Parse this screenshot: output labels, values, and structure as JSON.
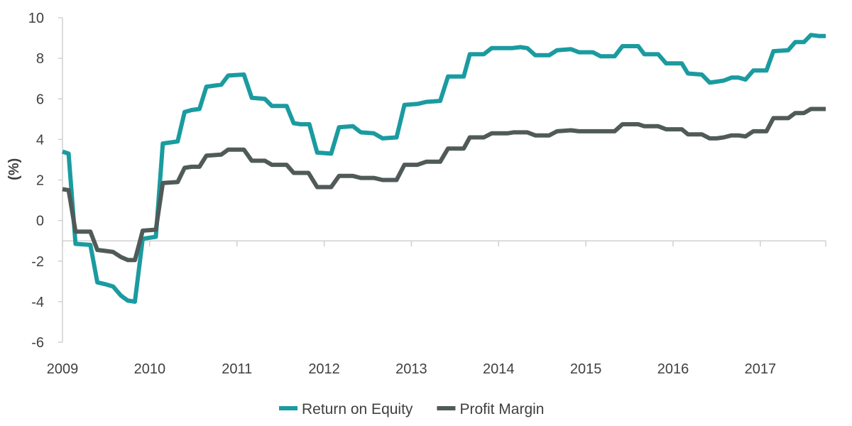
{
  "colors": {
    "axis": "#d0d0d0",
    "tick_label": "#404040"
  },
  "chart_data": {
    "type": "line",
    "title": "",
    "xlabel": "",
    "ylabel": "(%)",
    "xlim": [
      2009,
      2017.75
    ],
    "ylim": [
      -6,
      10
    ],
    "y_ticks": [
      "10",
      "8",
      "6",
      "4",
      "2",
      "0",
      "-2",
      "-4",
      "-6"
    ],
    "y_tick_values": [
      10,
      8,
      6,
      4,
      2,
      0,
      -2,
      -4,
      -6
    ],
    "x_ticks": [
      "2009",
      "2010",
      "2011",
      "2012",
      "2013",
      "2014",
      "2015",
      "2016",
      "2017"
    ],
    "x_tick_values": [
      2009,
      2010,
      2011,
      2012,
      2013,
      2014,
      2015,
      2016,
      2017
    ],
    "x_axis_crosses_y": -1,
    "grid": false,
    "legend": "bottom-center",
    "series": [
      {
        "name": "Return on Equity",
        "color": "#1a9ba0",
        "points": [
          [
            2009.0,
            3.4
          ],
          [
            2009.07,
            3.3
          ],
          [
            2009.15,
            -1.15
          ],
          [
            2009.32,
            -1.2
          ],
          [
            2009.4,
            -3.05
          ],
          [
            2009.5,
            -3.15
          ],
          [
            2009.58,
            -3.25
          ],
          [
            2009.67,
            -3.7
          ],
          [
            2009.75,
            -3.95
          ],
          [
            2009.83,
            -4.0
          ],
          [
            2009.92,
            -0.9
          ],
          [
            2010.07,
            -0.8
          ],
          [
            2010.15,
            3.8
          ],
          [
            2010.32,
            3.9
          ],
          [
            2010.4,
            5.35
          ],
          [
            2010.48,
            5.45
          ],
          [
            2010.57,
            5.5
          ],
          [
            2010.65,
            6.6
          ],
          [
            2010.82,
            6.7
          ],
          [
            2010.9,
            7.15
          ],
          [
            2011.08,
            7.2
          ],
          [
            2011.17,
            6.05
          ],
          [
            2011.32,
            6.0
          ],
          [
            2011.4,
            5.65
          ],
          [
            2011.57,
            5.65
          ],
          [
            2011.65,
            4.8
          ],
          [
            2011.73,
            4.75
          ],
          [
            2011.83,
            4.75
          ],
          [
            2011.92,
            3.35
          ],
          [
            2012.08,
            3.3
          ],
          [
            2012.17,
            4.6
          ],
          [
            2012.33,
            4.65
          ],
          [
            2012.42,
            4.35
          ],
          [
            2012.57,
            4.3
          ],
          [
            2012.67,
            4.05
          ],
          [
            2012.83,
            4.1
          ],
          [
            2012.92,
            5.7
          ],
          [
            2013.07,
            5.75
          ],
          [
            2013.17,
            5.85
          ],
          [
            2013.33,
            5.9
          ],
          [
            2013.42,
            7.1
          ],
          [
            2013.6,
            7.1
          ],
          [
            2013.67,
            8.2
          ],
          [
            2013.83,
            8.2
          ],
          [
            2013.92,
            8.5
          ],
          [
            2014.15,
            8.5
          ],
          [
            2014.25,
            8.55
          ],
          [
            2014.33,
            8.5
          ],
          [
            2014.42,
            8.15
          ],
          [
            2014.58,
            8.15
          ],
          [
            2014.67,
            8.4
          ],
          [
            2014.83,
            8.45
          ],
          [
            2014.92,
            8.3
          ],
          [
            2015.08,
            8.3
          ],
          [
            2015.17,
            8.1
          ],
          [
            2015.33,
            8.1
          ],
          [
            2015.42,
            8.6
          ],
          [
            2015.6,
            8.6
          ],
          [
            2015.67,
            8.2
          ],
          [
            2015.83,
            8.2
          ],
          [
            2015.92,
            7.75
          ],
          [
            2016.1,
            7.75
          ],
          [
            2016.17,
            7.25
          ],
          [
            2016.33,
            7.2
          ],
          [
            2016.42,
            6.8
          ],
          [
            2016.5,
            6.85
          ],
          [
            2016.58,
            6.9
          ],
          [
            2016.67,
            7.05
          ],
          [
            2016.75,
            7.05
          ],
          [
            2016.83,
            6.95
          ],
          [
            2016.92,
            7.4
          ],
          [
            2017.07,
            7.4
          ],
          [
            2017.15,
            8.35
          ],
          [
            2017.32,
            8.4
          ],
          [
            2017.4,
            8.8
          ],
          [
            2017.5,
            8.8
          ],
          [
            2017.58,
            9.15
          ],
          [
            2017.67,
            9.1
          ],
          [
            2017.75,
            9.1
          ]
        ]
      },
      {
        "name": "Profit Margin",
        "color": "#505a59",
        "points": [
          [
            2009.0,
            1.55
          ],
          [
            2009.07,
            1.5
          ],
          [
            2009.15,
            -0.55
          ],
          [
            2009.32,
            -0.55
          ],
          [
            2009.4,
            -1.45
          ],
          [
            2009.5,
            -1.5
          ],
          [
            2009.58,
            -1.55
          ],
          [
            2009.67,
            -1.8
          ],
          [
            2009.75,
            -1.95
          ],
          [
            2009.83,
            -1.95
          ],
          [
            2009.92,
            -0.5
          ],
          [
            2010.07,
            -0.45
          ],
          [
            2010.15,
            1.85
          ],
          [
            2010.32,
            1.9
          ],
          [
            2010.4,
            2.6
          ],
          [
            2010.48,
            2.65
          ],
          [
            2010.57,
            2.65
          ],
          [
            2010.65,
            3.2
          ],
          [
            2010.82,
            3.25
          ],
          [
            2010.9,
            3.5
          ],
          [
            2011.08,
            3.5
          ],
          [
            2011.17,
            2.95
          ],
          [
            2011.32,
            2.95
          ],
          [
            2011.4,
            2.75
          ],
          [
            2011.57,
            2.75
          ],
          [
            2011.65,
            2.35
          ],
          [
            2011.82,
            2.35
          ],
          [
            2011.92,
            1.65
          ],
          [
            2012.08,
            1.65
          ],
          [
            2012.17,
            2.2
          ],
          [
            2012.33,
            2.2
          ],
          [
            2012.42,
            2.1
          ],
          [
            2012.57,
            2.1
          ],
          [
            2012.67,
            2.0
          ],
          [
            2012.83,
            2.0
          ],
          [
            2012.92,
            2.75
          ],
          [
            2013.07,
            2.75
          ],
          [
            2013.17,
            2.9
          ],
          [
            2013.33,
            2.9
          ],
          [
            2013.42,
            3.55
          ],
          [
            2013.6,
            3.55
          ],
          [
            2013.67,
            4.1
          ],
          [
            2013.83,
            4.1
          ],
          [
            2013.92,
            4.3
          ],
          [
            2014.1,
            4.3
          ],
          [
            2014.17,
            4.35
          ],
          [
            2014.33,
            4.35
          ],
          [
            2014.42,
            4.2
          ],
          [
            2014.58,
            4.2
          ],
          [
            2014.67,
            4.4
          ],
          [
            2014.83,
            4.45
          ],
          [
            2014.92,
            4.4
          ],
          [
            2015.33,
            4.4
          ],
          [
            2015.42,
            4.75
          ],
          [
            2015.6,
            4.75
          ],
          [
            2015.67,
            4.65
          ],
          [
            2015.83,
            4.65
          ],
          [
            2015.92,
            4.5
          ],
          [
            2016.1,
            4.5
          ],
          [
            2016.17,
            4.25
          ],
          [
            2016.33,
            4.25
          ],
          [
            2016.42,
            4.05
          ],
          [
            2016.5,
            4.05
          ],
          [
            2016.58,
            4.1
          ],
          [
            2016.67,
            4.2
          ],
          [
            2016.75,
            4.2
          ],
          [
            2016.83,
            4.15
          ],
          [
            2016.92,
            4.4
          ],
          [
            2017.07,
            4.4
          ],
          [
            2017.15,
            5.05
          ],
          [
            2017.32,
            5.05
          ],
          [
            2017.4,
            5.3
          ],
          [
            2017.5,
            5.3
          ],
          [
            2017.58,
            5.5
          ],
          [
            2017.75,
            5.5
          ]
        ]
      }
    ]
  }
}
